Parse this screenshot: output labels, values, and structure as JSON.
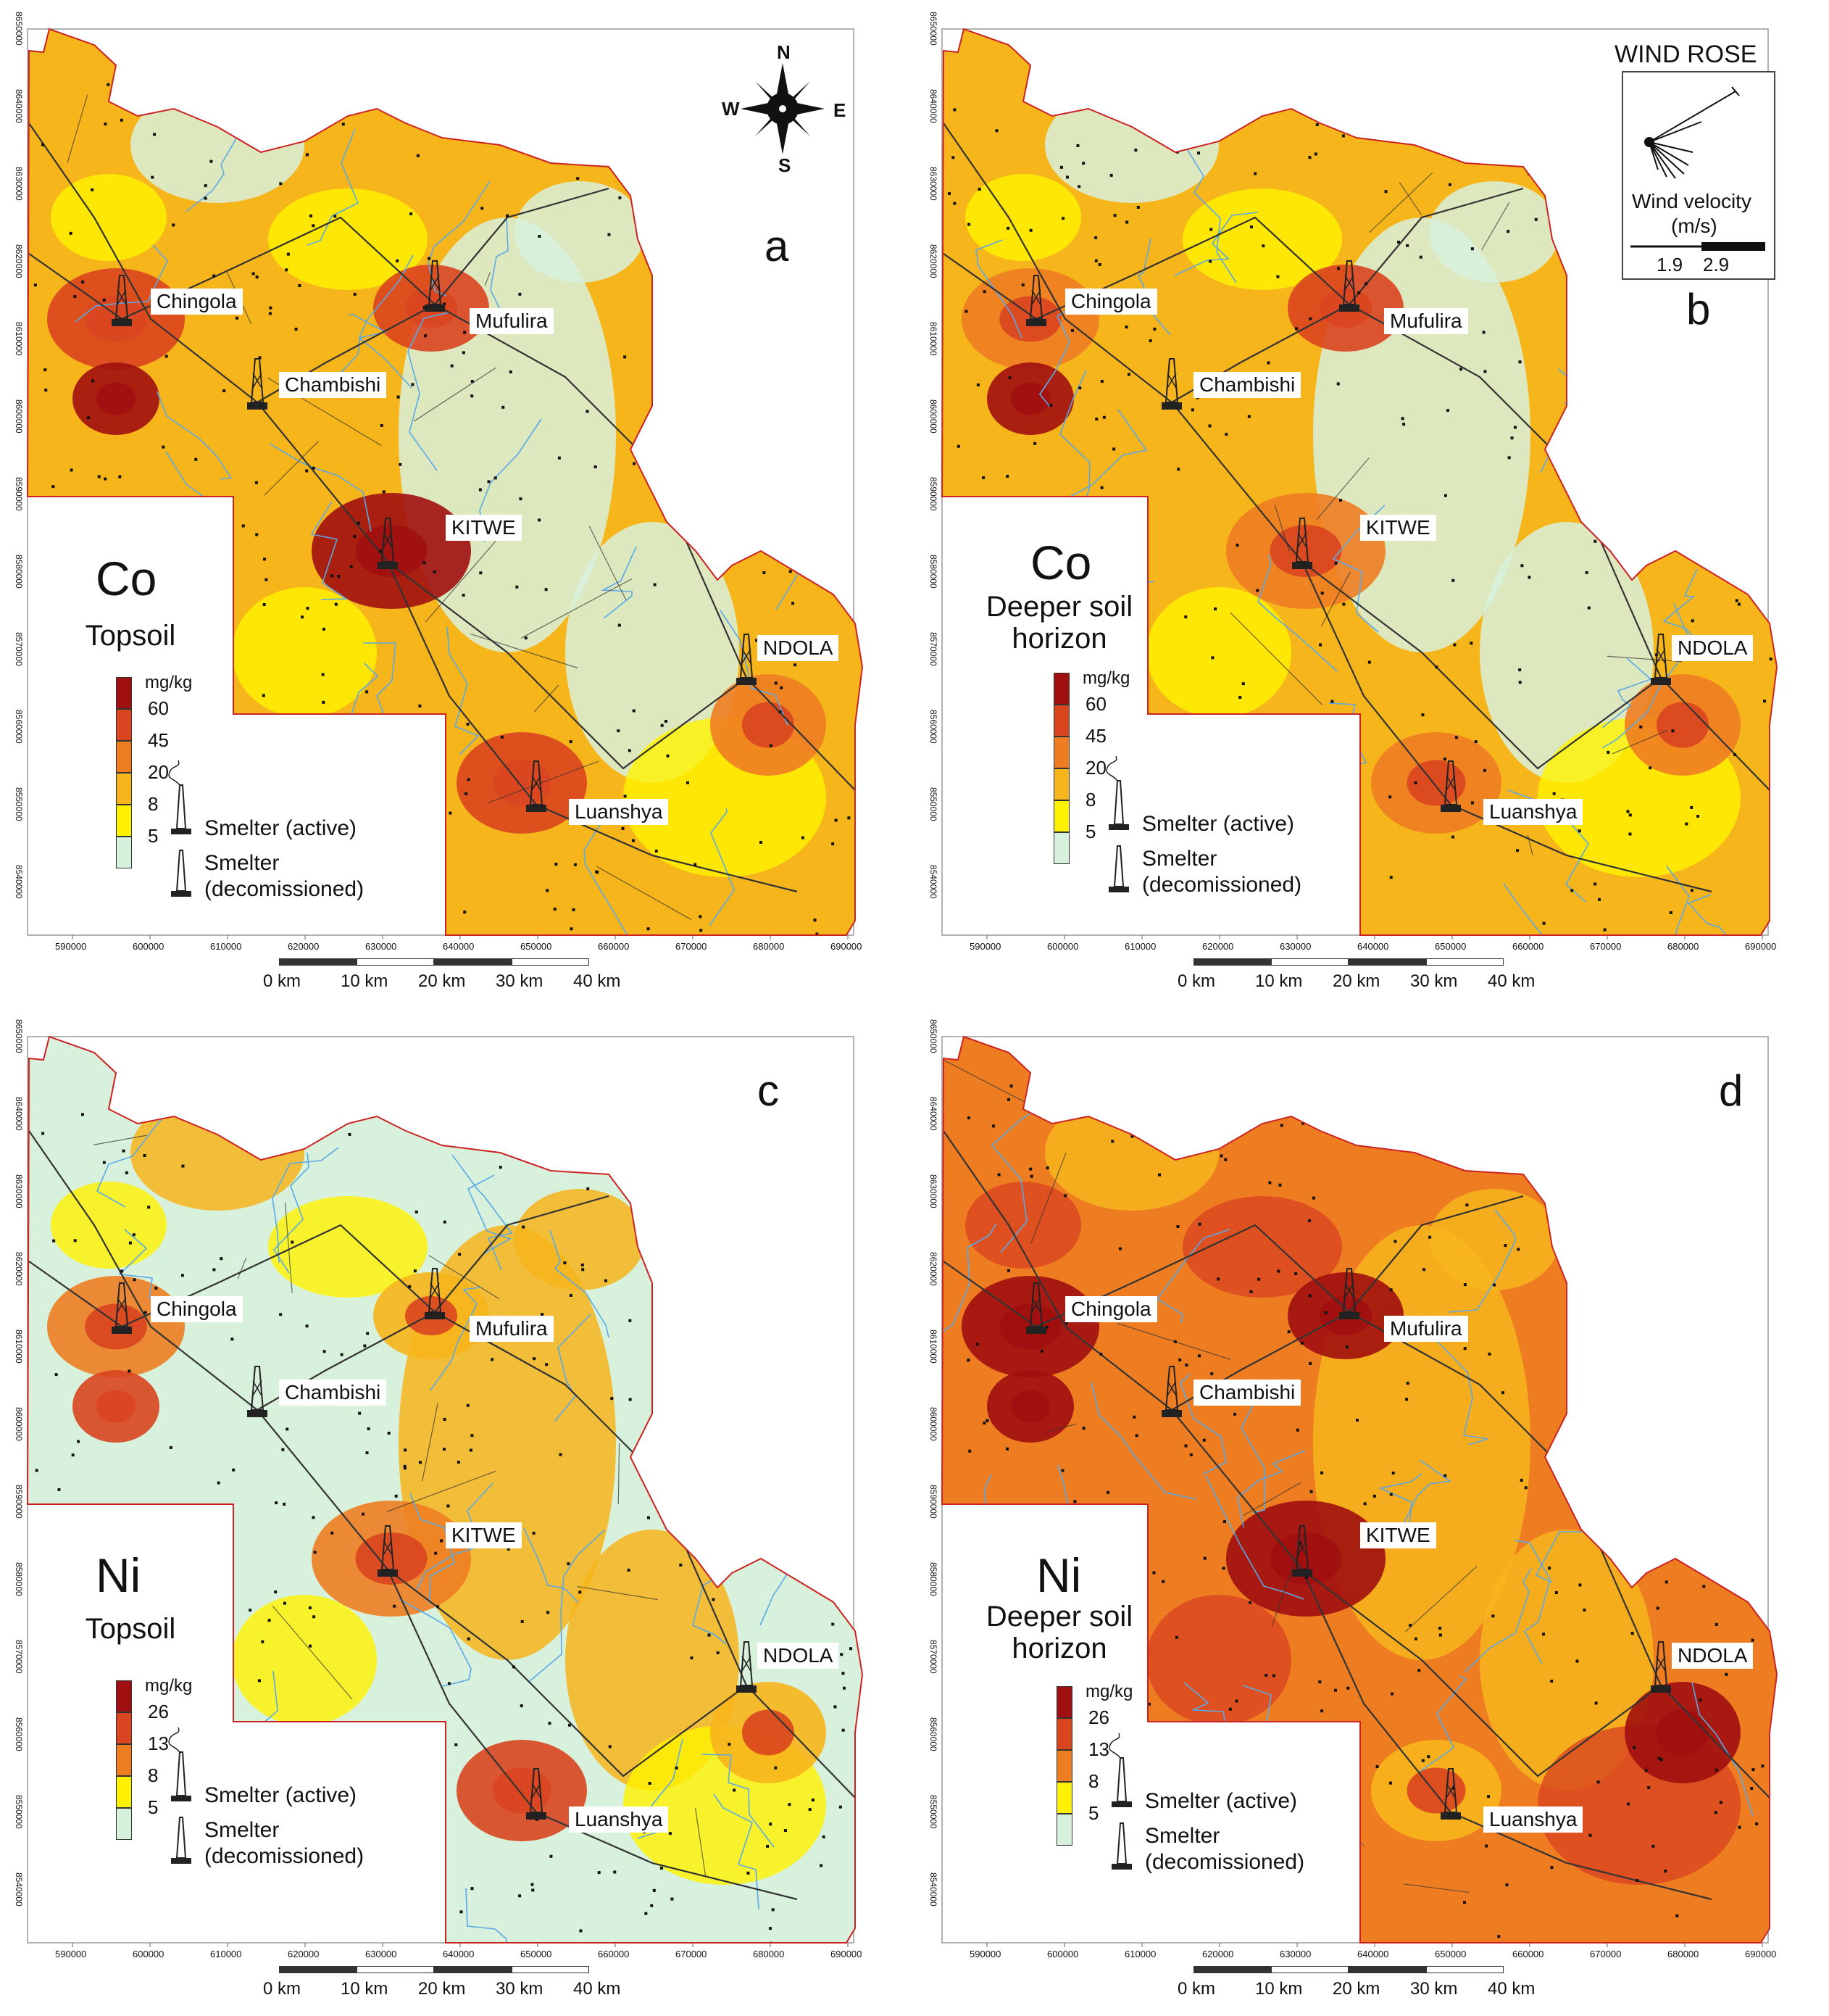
{
  "colors": {
    "c1": "#d8f1dc",
    "c2": "#fff200",
    "c3": "#f7b51c",
    "c4": "#ee7d22",
    "c5": "#d9451f",
    "c6": "#a01010",
    "road": "#333333",
    "river": "#5aa9e6",
    "boundary": "#cc2222"
  },
  "panels": [
    {
      "letter": "a",
      "element": "Co",
      "horizon_lines": [
        "Topsoil"
      ],
      "unit": "mg/kg",
      "ticks": [
        "60",
        "45",
        "20",
        "8",
        "5"
      ],
      "base_color": "c3",
      "hotspots": [
        "c5",
        "c6",
        "c5",
        "c6",
        "c5",
        "c4"
      ]
    },
    {
      "letter": "b",
      "element": "Co",
      "horizon_lines": [
        "Deeper soil",
        "horizon"
      ],
      "unit": "mg/kg",
      "ticks": [
        "60",
        "45",
        "20",
        "8",
        "5"
      ],
      "base_color": "c3",
      "hotspots": [
        "c4",
        "c6",
        "c5",
        "c4",
        "c4",
        "c4"
      ]
    },
    {
      "letter": "c",
      "element": "Ni",
      "horizon_lines": [
        "Topsoil"
      ],
      "unit": "mg/kg",
      "ticks": [
        "26",
        "13",
        "8",
        "5"
      ],
      "base_color": "c1",
      "hotspots": [
        "c4",
        "c5",
        "c3",
        "c4",
        "c5",
        "c3"
      ]
    },
    {
      "letter": "d",
      "element": "Ni",
      "horizon_lines": [
        "Deeper soil",
        "horizon"
      ],
      "unit": "mg/kg",
      "ticks": [
        "26",
        "13",
        "8",
        "5"
      ],
      "base_color": "c4",
      "hotspots": [
        "c6",
        "c6",
        "c6",
        "c6",
        "c3",
        "c6"
      ]
    }
  ],
  "towns": {
    "chingola": "Chingola",
    "mufulira": "Mufulira",
    "chambishi": "Chambishi",
    "kitwe": "KITWE",
    "ndola": "NDOLA",
    "luanshya": "Luanshya"
  },
  "legend_labels": {
    "active": "Smelter (active)",
    "decom_1": "Smelter",
    "decom_2": "(decomissioned)"
  },
  "x_ticks": [
    "590000",
    "600000",
    "610000",
    "620000",
    "630000",
    "640000",
    "650000",
    "660000",
    "670000",
    "680000",
    "690000"
  ],
  "y_ticks": [
    "8650000",
    "8640000",
    "8630000",
    "8620000",
    "8610000",
    "8600000",
    "8590000",
    "8580000",
    "8570000",
    "8560000",
    "8550000",
    "8540000"
  ],
  "scale_labels": [
    "0 km",
    "10 km",
    "20 km",
    "30 km",
    "40 km"
  ],
  "compass": {
    "n": "N",
    "s": "S",
    "e": "E",
    "w": "W"
  },
  "wind_rose": {
    "title": "WIND ROSE",
    "velocity_label": "Wind velocity",
    "velocity_unit": "(m/s)",
    "tick_1": "1.9",
    "tick_2": "2.9"
  }
}
